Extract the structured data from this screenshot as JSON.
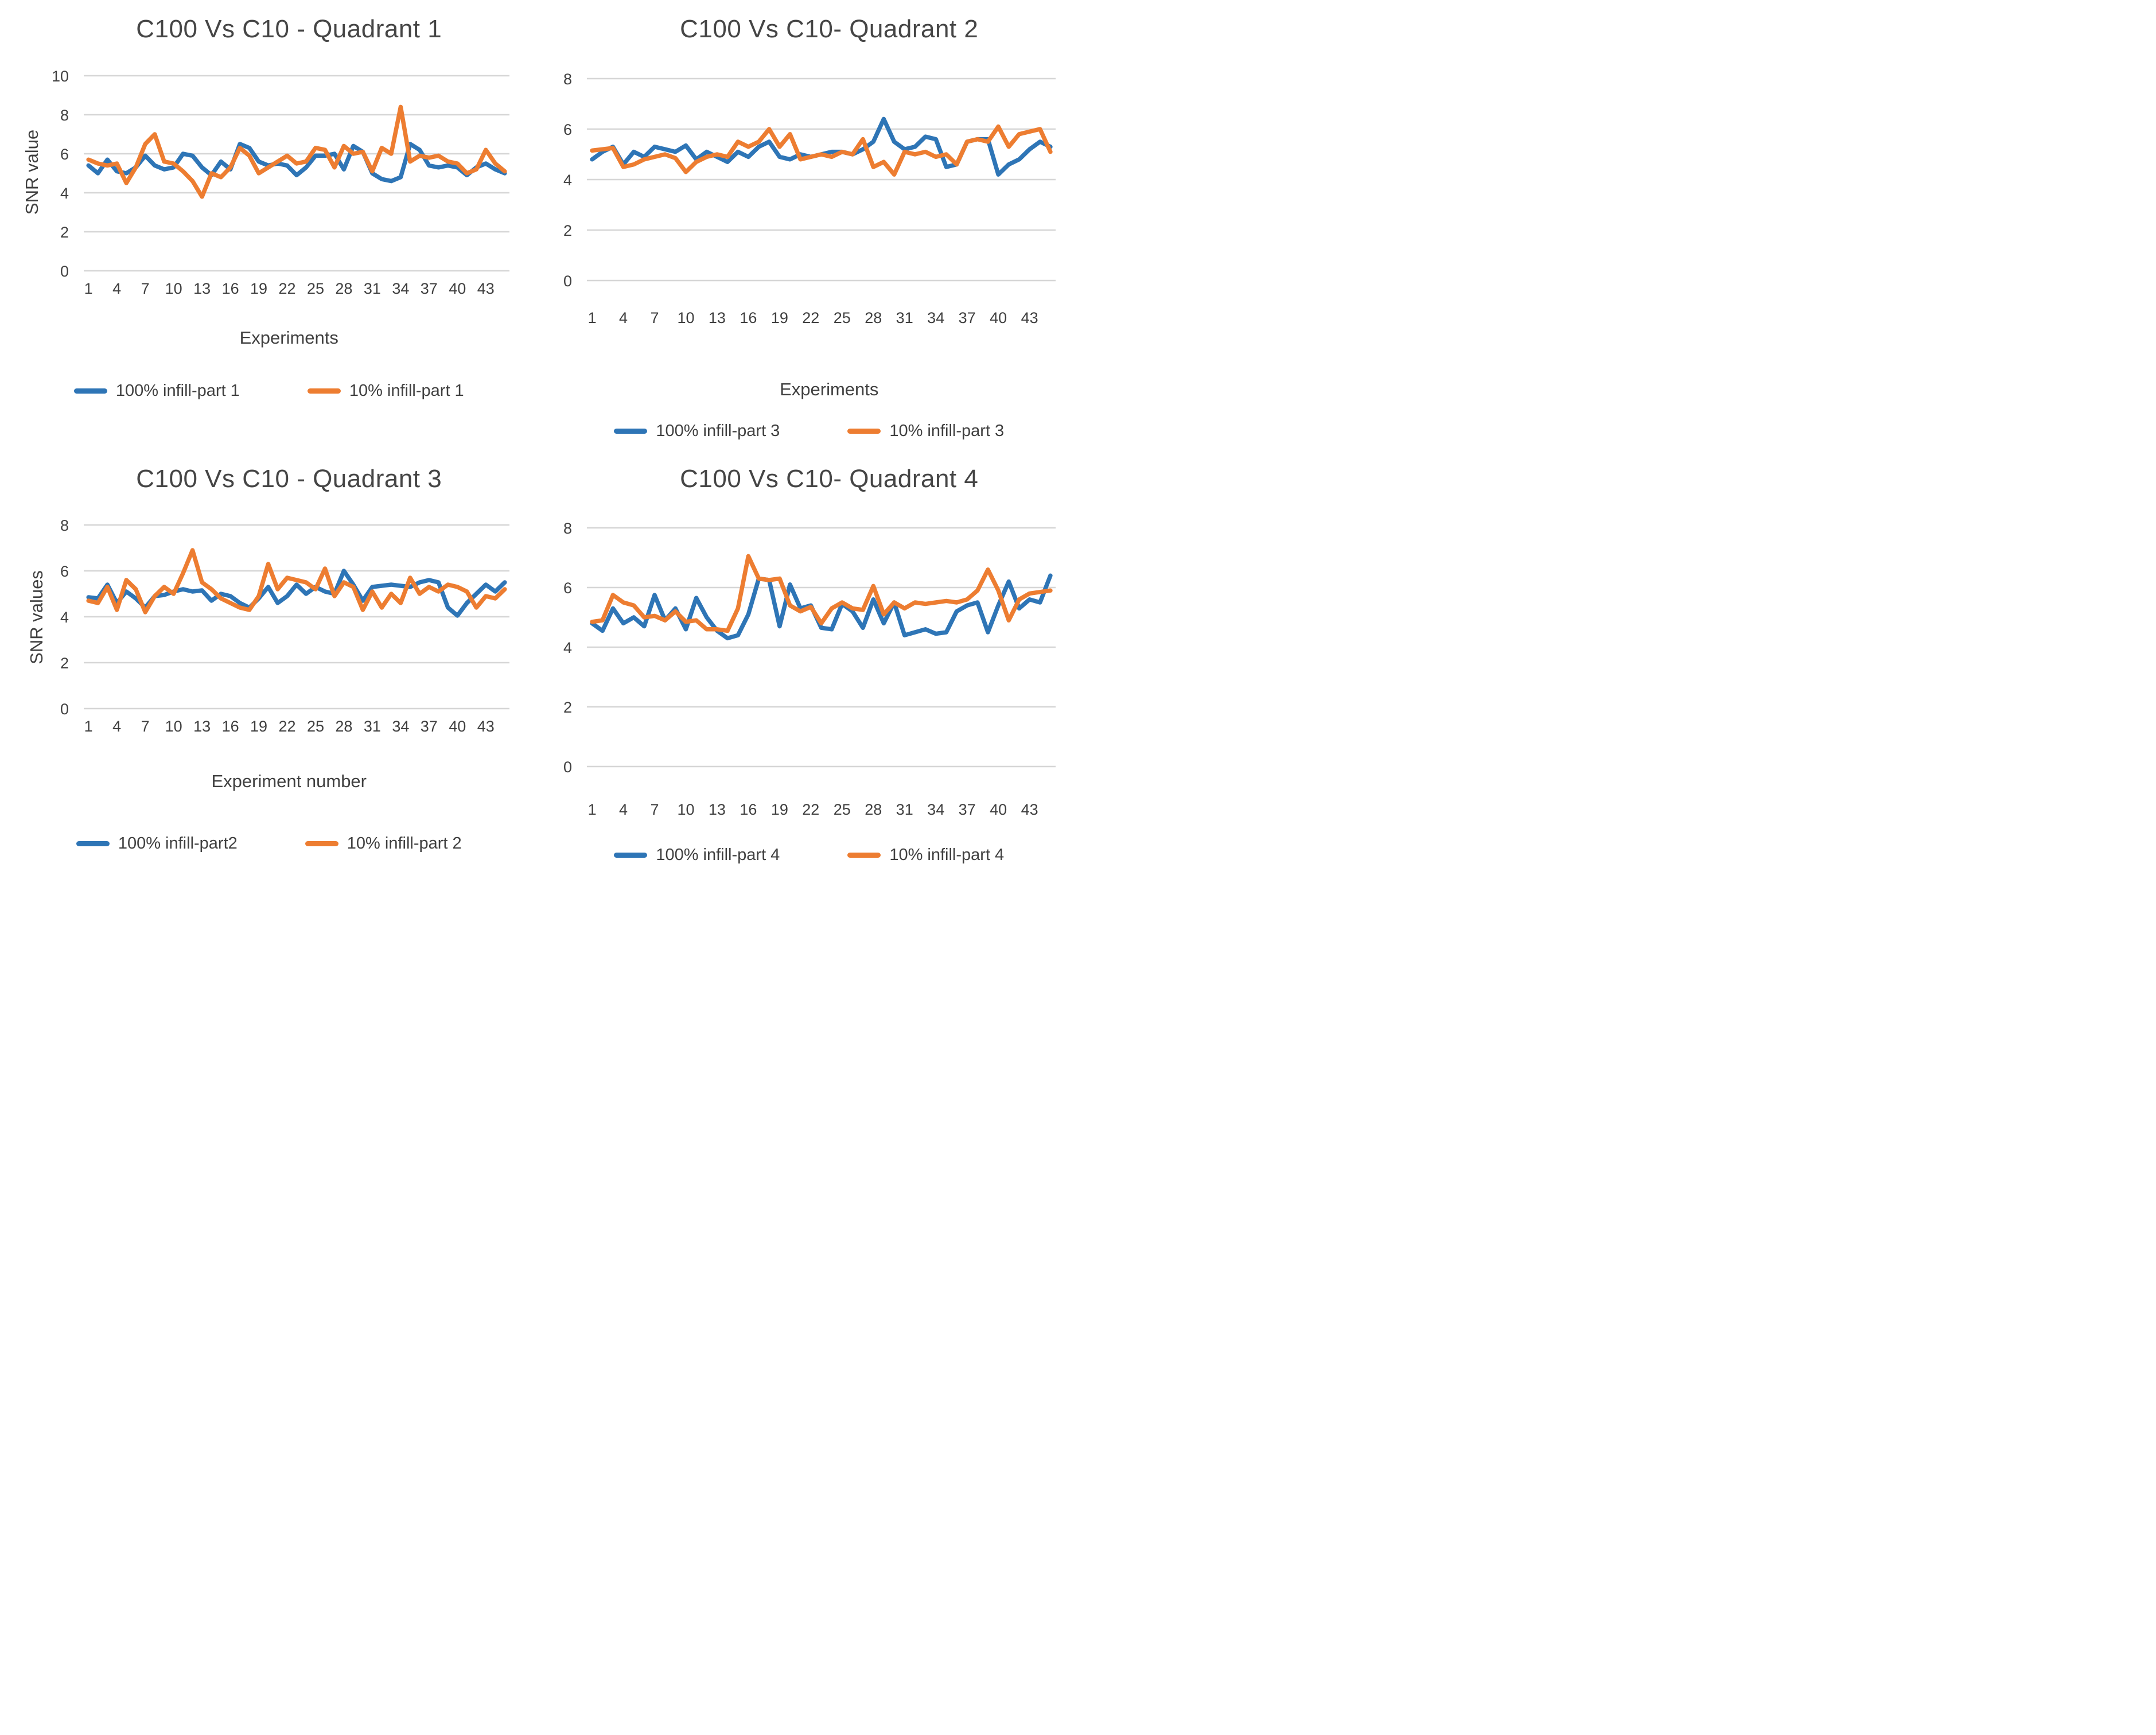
{
  "chart_data": [
    {
      "type": "line",
      "title": "C100 Vs C10 - Quadrant 1",
      "xlabel": "Experiments",
      "ylabel": "SNR value",
      "ylim": [
        0,
        10
      ],
      "y_ticks": [
        0,
        2,
        4,
        6,
        8,
        10
      ],
      "x_ticks": [
        1,
        4,
        7,
        10,
        13,
        16,
        19,
        22,
        25,
        28,
        31,
        34,
        37,
        40,
        43
      ],
      "x_range": [
        1,
        45
      ],
      "grid": true,
      "legend_position": "bottom",
      "series": [
        {
          "name": "100% infill-part 1",
          "color": "#2E75B6",
          "values": [
            5.4,
            5.0,
            5.7,
            5.1,
            5.0,
            5.3,
            5.9,
            5.4,
            5.2,
            5.3,
            6.0,
            5.9,
            5.3,
            4.9,
            5.6,
            5.2,
            6.5,
            6.3,
            5.6,
            5.4,
            5.5,
            5.4,
            4.9,
            5.3,
            5.9,
            5.9,
            6.0,
            5.2,
            6.4,
            6.1,
            5.0,
            4.7,
            4.6,
            4.8,
            6.5,
            6.2,
            5.4,
            5.3,
            5.4,
            5.3,
            4.9,
            5.3,
            5.5,
            5.2,
            5.0
          ]
        },
        {
          "name": "10% infill-part 1",
          "color": "#ED7D31",
          "values": [
            5.7,
            5.5,
            5.4,
            5.5,
            4.5,
            5.3,
            6.5,
            7.0,
            5.6,
            5.5,
            5.1,
            4.6,
            3.8,
            5.0,
            4.8,
            5.3,
            6.3,
            5.9,
            5.0,
            5.3,
            5.6,
            5.9,
            5.5,
            5.6,
            6.3,
            6.2,
            5.3,
            6.4,
            6.0,
            6.1,
            5.1,
            6.3,
            6.0,
            8.4,
            5.6,
            5.9,
            5.8,
            5.9,
            5.6,
            5.5,
            5.0,
            5.2,
            6.2,
            5.5,
            5.1
          ]
        }
      ]
    },
    {
      "type": "line",
      "title": "C100 Vs C10- Quadrant 2",
      "xlabel": "Experiments",
      "ylabel": "",
      "ylim": [
        0,
        8
      ],
      "y_ticks": [
        0,
        2,
        4,
        6,
        8
      ],
      "x_ticks": [
        1,
        4,
        7,
        10,
        13,
        16,
        19,
        22,
        25,
        28,
        31,
        34,
        37,
        40,
        43
      ],
      "x_range": [
        1,
        45
      ],
      "grid": true,
      "legend_position": "bottom",
      "series": [
        {
          "name": "100% infill-part 3",
          "color": "#2E75B6",
          "values": [
            4.8,
            5.1,
            5.3,
            4.6,
            5.1,
            4.9,
            5.3,
            5.2,
            5.1,
            5.35,
            4.8,
            5.1,
            4.9,
            4.7,
            5.1,
            4.9,
            5.3,
            5.5,
            4.9,
            4.8,
            5.0,
            4.9,
            5.0,
            5.1,
            5.1,
            5.0,
            5.2,
            5.5,
            6.4,
            5.5,
            5.2,
            5.3,
            5.7,
            5.6,
            4.5,
            4.6,
            5.5,
            5.6,
            5.6,
            4.2,
            4.6,
            4.8,
            5.2,
            5.5,
            5.3
          ]
        },
        {
          "name": "10% infill-part 3",
          "color": "#ED7D31",
          "values": [
            5.15,
            5.2,
            5.25,
            4.5,
            4.6,
            4.8,
            4.9,
            5.0,
            4.85,
            4.3,
            4.7,
            4.9,
            5.0,
            4.9,
            5.5,
            5.3,
            5.5,
            6.0,
            5.3,
            5.8,
            4.8,
            4.9,
            5.0,
            4.9,
            5.1,
            5.0,
            5.6,
            4.5,
            4.7,
            4.2,
            5.1,
            5.0,
            5.1,
            4.9,
            5.0,
            4.6,
            5.5,
            5.6,
            5.5,
            6.1,
            5.3,
            5.8,
            5.9,
            6.0,
            5.1
          ]
        }
      ]
    },
    {
      "type": "line",
      "title": "C100 Vs C10 - Quadrant 3",
      "xlabel": "Experiment number",
      "ylabel": "SNR values",
      "ylim": [
        0,
        8
      ],
      "y_ticks": [
        0,
        2,
        4,
        6,
        8
      ],
      "x_ticks": [
        1,
        4,
        7,
        10,
        13,
        16,
        19,
        22,
        25,
        28,
        31,
        34,
        37,
        40,
        43
      ],
      "x_range": [
        1,
        45
      ],
      "grid": true,
      "legend_position": "bottom",
      "series": [
        {
          "name": "100% infill-part2",
          "color": "#2E75B6",
          "values": [
            4.85,
            4.8,
            5.4,
            4.6,
            5.1,
            4.8,
            4.4,
            4.9,
            4.95,
            5.1,
            5.2,
            5.1,
            5.15,
            4.7,
            5.0,
            4.9,
            4.6,
            4.4,
            4.8,
            5.3,
            4.6,
            4.9,
            5.4,
            5.0,
            5.3,
            5.1,
            5.0,
            6.0,
            5.4,
            4.7,
            5.3,
            5.35,
            5.4,
            5.35,
            5.3,
            5.5,
            5.6,
            5.5,
            4.4,
            4.05,
            4.6,
            5.0,
            5.4,
            5.1,
            5.5
          ]
        },
        {
          "name": "10% infill-part 2",
          "color": "#ED7D31",
          "values": [
            4.7,
            4.6,
            5.3,
            4.3,
            5.6,
            5.2,
            4.2,
            4.9,
            5.3,
            5.0,
            5.9,
            6.9,
            5.5,
            5.2,
            4.8,
            4.6,
            4.4,
            4.3,
            4.9,
            6.3,
            5.2,
            5.7,
            5.6,
            5.5,
            5.2,
            6.1,
            4.9,
            5.5,
            5.3,
            4.3,
            5.1,
            4.4,
            5.0,
            4.6,
            5.7,
            5.0,
            5.3,
            5.1,
            5.4,
            5.3,
            5.1,
            4.4,
            4.9,
            4.8,
            5.2
          ]
        }
      ]
    },
    {
      "type": "line",
      "title": "C100 Vs C10- Quadrant 4",
      "xlabel": "",
      "ylabel": "",
      "ylim": [
        0,
        8
      ],
      "y_ticks": [
        0,
        2,
        4,
        6,
        8
      ],
      "x_ticks": [
        1,
        4,
        7,
        10,
        13,
        16,
        19,
        22,
        25,
        28,
        31,
        34,
        37,
        40,
        43
      ],
      "x_range": [
        1,
        45
      ],
      "grid": true,
      "legend_position": "bottom",
      "series": [
        {
          "name": "100% infill-part 4",
          "color": "#2E75B6",
          "values": [
            4.8,
            4.55,
            5.3,
            4.8,
            5.0,
            4.7,
            5.75,
            4.9,
            5.3,
            4.6,
            5.65,
            5.0,
            4.55,
            4.3,
            4.4,
            5.1,
            6.3,
            6.25,
            4.7,
            6.1,
            5.3,
            5.4,
            4.65,
            4.6,
            5.45,
            5.2,
            4.65,
            5.6,
            4.8,
            5.5,
            4.4,
            4.5,
            4.6,
            4.45,
            4.5,
            5.2,
            5.4,
            5.5,
            4.5,
            5.4,
            6.2,
            5.3,
            5.6,
            5.5,
            6.4
          ]
        },
        {
          "name": "10% infill-part 4",
          "color": "#ED7D31",
          "values": [
            4.85,
            4.9,
            5.75,
            5.5,
            5.4,
            5.0,
            5.05,
            4.9,
            5.2,
            4.85,
            4.9,
            4.6,
            4.6,
            4.55,
            5.3,
            7.05,
            6.3,
            6.25,
            6.3,
            5.4,
            5.2,
            5.35,
            4.8,
            5.3,
            5.5,
            5.3,
            5.25,
            6.05,
            5.1,
            5.5,
            5.3,
            5.5,
            5.45,
            5.5,
            5.55,
            5.5,
            5.6,
            5.9,
            6.6,
            5.9,
            4.9,
            5.6,
            5.8,
            5.85,
            5.9
          ]
        }
      ]
    }
  ]
}
